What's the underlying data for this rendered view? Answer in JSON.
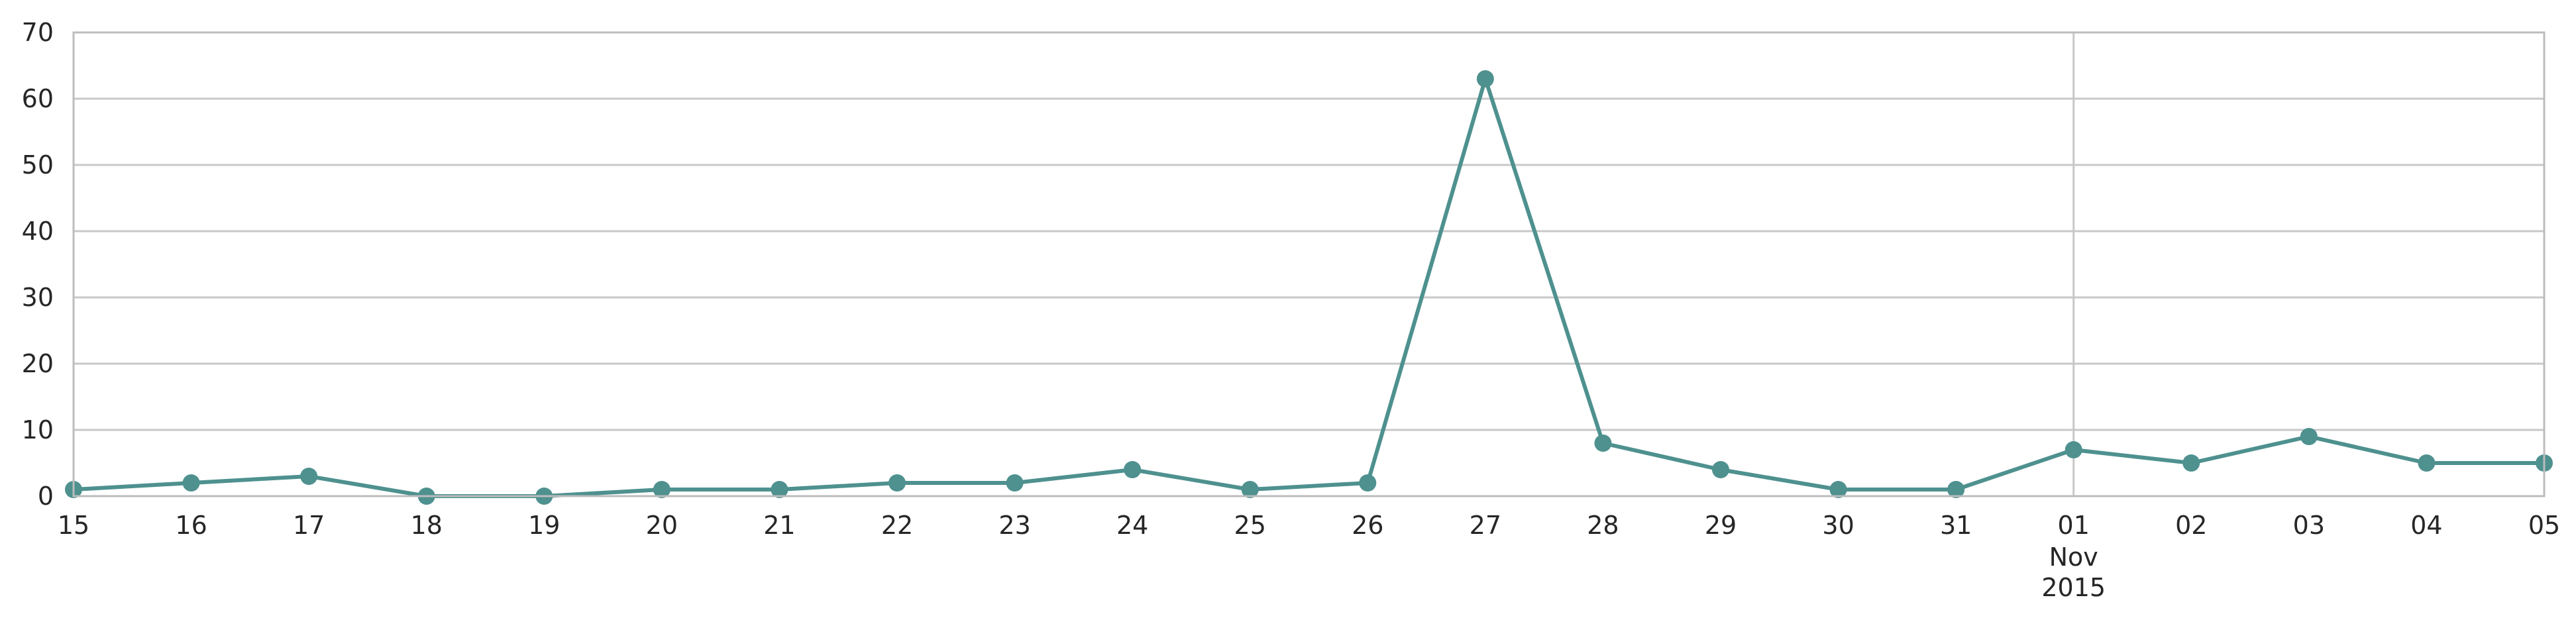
{
  "chart_data": {
    "type": "line",
    "x": [
      "2015-10-15",
      "2015-10-16",
      "2015-10-17",
      "2015-10-18",
      "2015-10-19",
      "2015-10-20",
      "2015-10-21",
      "2015-10-22",
      "2015-10-23",
      "2015-10-24",
      "2015-10-25",
      "2015-10-26",
      "2015-10-27",
      "2015-10-28",
      "2015-10-29",
      "2015-10-30",
      "2015-10-31",
      "2015-11-01",
      "2015-11-02",
      "2015-11-03",
      "2015-11-04",
      "2015-11-05"
    ],
    "x_tick_labels": [
      "15",
      "16",
      "17",
      "18",
      "19",
      "20",
      "21",
      "22",
      "23",
      "24",
      "25",
      "26",
      "27",
      "28",
      "29",
      "30",
      "31",
      "01",
      "02",
      "03",
      "04",
      "05"
    ],
    "x_month_label": "Nov",
    "x_year_label": "2015",
    "series": [
      {
        "values": [
          1,
          2,
          3,
          0,
          0,
          1,
          1,
          2,
          2,
          4,
          1,
          2,
          63,
          8,
          4,
          1,
          1,
          7,
          5,
          9,
          5,
          5
        ]
      }
    ],
    "title": "",
    "xlabel": "",
    "ylabel": "",
    "ylim": [
      0,
      70
    ],
    "y_ticks": [
      0,
      10,
      20,
      30,
      40,
      50,
      60,
      70
    ],
    "grid": {
      "horizontal": true,
      "vertical_at": [
        "2015-11-01"
      ]
    },
    "legend": "none",
    "colors": {
      "series": "#4e918f",
      "grid": "#c8c8c8",
      "frame": "#bcbcbc",
      "text": "#262626"
    }
  }
}
